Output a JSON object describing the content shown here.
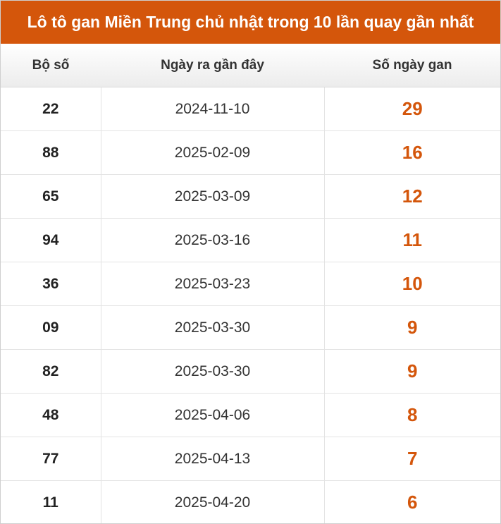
{
  "title": "Lô tô gan Miền Trung chủ nhật trong 10 lần quay gần nhất",
  "headers": {
    "number": "Bộ số",
    "last_date": "Ngày ra gần đây",
    "gan_days": "Số ngày gan"
  },
  "colors": {
    "accent": "#d4560b",
    "header_bg": "#ececec"
  },
  "rows": [
    {
      "number": "22",
      "date": "2024-11-10",
      "gan": "29"
    },
    {
      "number": "88",
      "date": "2025-02-09",
      "gan": "16"
    },
    {
      "number": "65",
      "date": "2025-03-09",
      "gan": "12"
    },
    {
      "number": "94",
      "date": "2025-03-16",
      "gan": "11"
    },
    {
      "number": "36",
      "date": "2025-03-23",
      "gan": "10"
    },
    {
      "number": "09",
      "date": "2025-03-30",
      "gan": "9"
    },
    {
      "number": "82",
      "date": "2025-03-30",
      "gan": "9"
    },
    {
      "number": "48",
      "date": "2025-04-06",
      "gan": "8"
    },
    {
      "number": "77",
      "date": "2025-04-13",
      "gan": "7"
    },
    {
      "number": "11",
      "date": "2025-04-20",
      "gan": "6"
    }
  ]
}
